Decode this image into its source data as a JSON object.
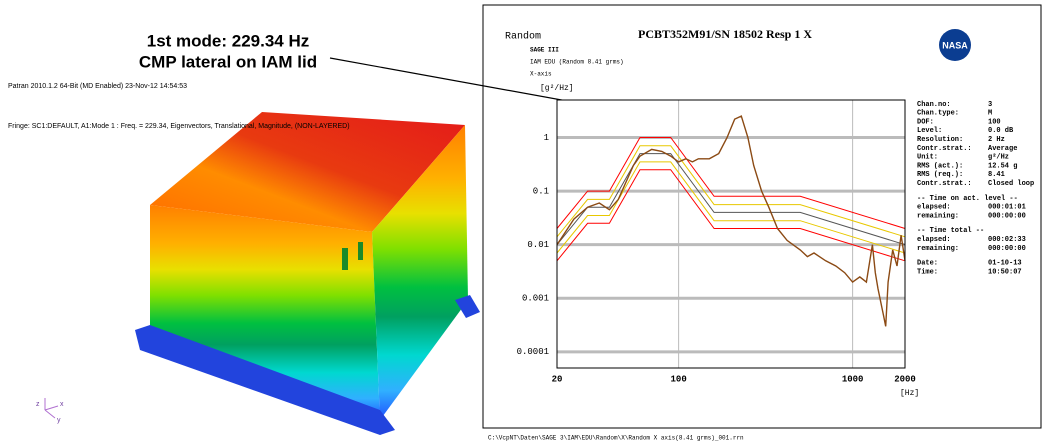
{
  "annotation": [
    "1st mode: 229.34 Hz",
    "CMP lateral on IAM lid"
  ],
  "fea": {
    "header": [
      "Patran 2010.1.2 64-Bit (MD Enabled) 23-Nov-12 14:54:53",
      "Fringe: SC1:DEFAULT, A1:Mode 1 : Freq. = 229.34, Eigenvectors, Translational, Magnitude, (NON-LAYERED)"
    ],
    "triad": [
      "z",
      "x",
      "y"
    ]
  },
  "logo_text": "NASA",
  "chart_data": {
    "type": "line",
    "mode": "Random",
    "title": "PCBT352M91/SN 18502 Resp 1 X",
    "subtitle": [
      "SAGE III",
      "IAM EDU (Random 8.41 grms)",
      "X-axis"
    ],
    "y_label": "[g²/Hz]",
    "x_label": "[Hz]",
    "log_x": true,
    "log_y": true,
    "grid": true,
    "xlim": [
      20,
      2000
    ],
    "ylim": [
      5e-05,
      5
    ],
    "xticks": [
      20,
      100,
      1000,
      2000
    ],
    "yticks": [
      0.0001,
      0.001,
      0.01,
      0.1,
      1
    ],
    "series": [
      {
        "color": "#ff0000",
        "x": [
          20,
          30,
          40,
          60,
          90,
          160,
          500,
          2000
        ],
        "values": [
          0.02,
          0.1,
          0.1,
          1,
          1,
          0.08,
          0.08,
          0.02
        ]
      },
      {
        "color": "#e8c800",
        "x": [
          20,
          30,
          40,
          60,
          90,
          160,
          500,
          2000
        ],
        "values": [
          0.014,
          0.07,
          0.07,
          0.7,
          0.7,
          0.056,
          0.056,
          0.014
        ]
      },
      {
        "color": "#555555",
        "x": [
          20,
          30,
          40,
          60,
          90,
          160,
          500,
          2000
        ],
        "values": [
          0.01,
          0.05,
          0.05,
          0.5,
          0.5,
          0.04,
          0.04,
          0.01
        ]
      },
      {
        "color": "#e8c800",
        "x": [
          20,
          30,
          40,
          60,
          90,
          160,
          500,
          2000
        ],
        "values": [
          0.007,
          0.035,
          0.035,
          0.35,
          0.35,
          0.028,
          0.028,
          0.007
        ]
      },
      {
        "color": "#ff0000",
        "x": [
          20,
          30,
          40,
          60,
          90,
          160,
          500,
          2000
        ],
        "values": [
          0.005,
          0.025,
          0.025,
          0.25,
          0.25,
          0.02,
          0.02,
          0.005
        ]
      },
      {
        "color": "#8b4a14",
        "x": [
          20,
          25,
          30,
          35,
          40,
          45,
          50,
          55,
          60,
          70,
          80,
          90,
          100,
          110,
          120,
          130,
          150,
          170,
          190,
          200,
          210,
          229.34,
          250,
          270,
          300,
          330,
          370,
          420,
          500,
          550,
          600,
          700,
          800,
          900,
          1000,
          1100,
          1200,
          1300,
          1350,
          1400,
          1500,
          1550,
          1600,
          1700,
          1800,
          1900,
          2000
        ],
        "values": [
          0.01,
          0.03,
          0.05,
          0.06,
          0.045,
          0.07,
          0.15,
          0.3,
          0.45,
          0.6,
          0.55,
          0.45,
          0.35,
          0.4,
          0.35,
          0.4,
          0.4,
          0.5,
          1.0,
          1.5,
          2.2,
          2.5,
          1.0,
          0.3,
          0.1,
          0.05,
          0.02,
          0.012,
          0.008,
          0.006,
          0.007,
          0.005,
          0.004,
          0.003,
          0.002,
          0.0025,
          0.002,
          0.01,
          0.003,
          0.0015,
          0.0005,
          0.0003,
          0.002,
          0.008,
          0.004,
          0.015,
          0.005
        ]
      }
    ]
  },
  "info": [
    {
      "label": "Chan.no:",
      "value": "3"
    },
    {
      "label": "Chan.type:",
      "value": "M"
    },
    {
      "label": "DOF:",
      "value": "100"
    },
    {
      "label": "Level:",
      "value": "0.0 dB"
    },
    {
      "label": "Resolution:",
      "value": "2 Hz"
    },
    {
      "label": "Contr.strat.:",
      "value": "Average"
    },
    {
      "label": "Unit:",
      "value": "g²/Hz"
    },
    {
      "label": "RMS (act.):",
      "value": "12.54 g"
    },
    {
      "label": "RMS (req.):",
      "value": "8.41"
    },
    {
      "label": "Contr.strat.:",
      "value": "Closed loop"
    },
    {
      "label": "-- Time on act. level --"
    },
    {
      "label": "elapsed:",
      "value": "000:01:01"
    },
    {
      "label": "remaining:",
      "value": "000:00:00"
    },
    {
      "label": "-- Time total --"
    },
    {
      "label": "elapsed:",
      "value": "000:02:33"
    },
    {
      "label": "remaining:",
      "value": "000:00:00"
    },
    {
      "label": "Date:",
      "value": "01-10-13"
    },
    {
      "label": "Time:",
      "value": "10:50:07"
    }
  ],
  "footer": "C:\\VcpNT\\Daten\\SAGE 3\\IAM\\EDU\\Random\\X\\Random X axis(8.41 grms)_001.rrn"
}
